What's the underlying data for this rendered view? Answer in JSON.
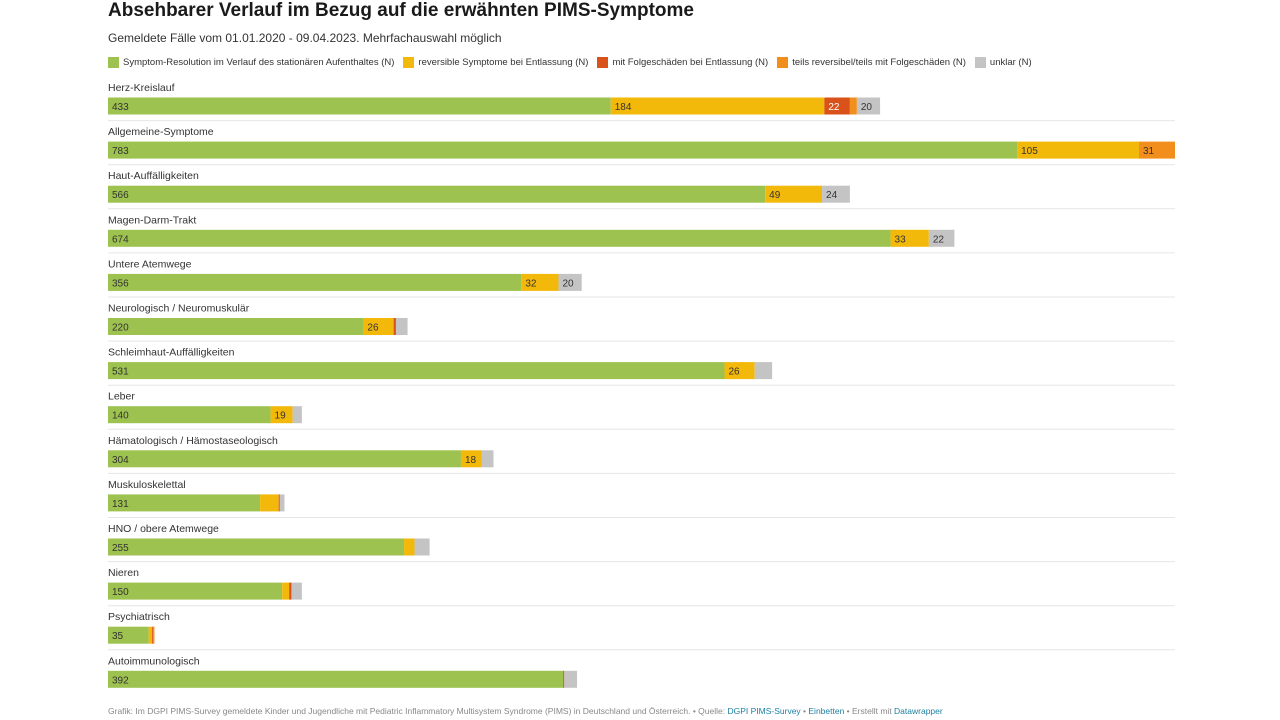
{
  "chart_data": {
    "type": "bar",
    "orientation": "horizontal",
    "stacked": true,
    "title": "Absehbarer Verlauf im Bezug auf die erwähnten PIMS-Symptome",
    "subtitle": "Gemeldete Fälle vom 01.01.2020 - 09.04.2023. Mehrfachauswahl möglich",
    "categories": [
      "Herz-Kreislauf",
      "Allgemeine-Symptome",
      "Haut-Auffälligkeiten",
      "Magen-Darm-Trakt",
      "Untere Atemwege",
      "Neurologisch / Neuromuskulär",
      "Schleimhaut-Auffälligkeiten",
      "Leber",
      "Hämatologisch / Hämostaseologisch",
      "Muskuloskelettal",
      "HNO / obere Atemwege",
      "Nieren",
      "Psychiatrisch",
      "Autoimmunologisch"
    ],
    "series": [
      {
        "name": "Symptom-Resolution im Verlauf des stationären Aufenthaltes (N)",
        "color": "#9dc24f",
        "values": [
          433,
          783,
          566,
          674,
          356,
          220,
          531,
          140,
          304,
          131,
          255,
          150,
          35,
          392
        ]
      },
      {
        "name": "reversible Symptome bei Entlassung (N)",
        "color": "#f2b80a",
        "values": [
          184,
          105,
          49,
          33,
          32,
          26,
          26,
          19,
          18,
          16,
          9,
          6,
          3,
          0
        ]
      },
      {
        "name": "mit Folgeschäden bei Entlassung (N)",
        "color": "#d9521a",
        "values": [
          22,
          0,
          0,
          0,
          0,
          2,
          0,
          0,
          0,
          1,
          0,
          2,
          1,
          1
        ]
      },
      {
        "name": "teils reversibel/teils mit Folgeschäden (N)",
        "color": "#f28f1c",
        "values": [
          6,
          31,
          0,
          0,
          0,
          0,
          0,
          0,
          0,
          0,
          0,
          0,
          1,
          0
        ]
      },
      {
        "name": "unklar (N)",
        "color": "#c4c4c4",
        "values": [
          20,
          0,
          24,
          22,
          20,
          10,
          15,
          8,
          10,
          4,
          13,
          9,
          0,
          11
        ]
      }
    ],
    "data_labels": [
      [
        "433",
        "184",
        "22",
        "",
        "20"
      ],
      [
        "783",
        "105",
        "",
        "31",
        ""
      ],
      [
        "566",
        "49",
        "",
        "",
        "24"
      ],
      [
        "674",
        "33",
        "",
        "",
        "22"
      ],
      [
        "356",
        "32",
        "",
        "",
        "20"
      ],
      [
        "220",
        "26",
        "",
        "",
        ""
      ],
      [
        "531",
        "26",
        "",
        "",
        ""
      ],
      [
        "140",
        "19",
        "",
        "",
        ""
      ],
      [
        "304",
        "18",
        "",
        "",
        ""
      ],
      [
        "131",
        "",
        "",
        "",
        ""
      ],
      [
        "255",
        "",
        "",
        "",
        ""
      ],
      [
        "150",
        "",
        "",
        "",
        ""
      ],
      [
        "35",
        "",
        "",
        "",
        ""
      ],
      [
        "392",
        "",
        "",
        "",
        ""
      ]
    ],
    "xlim": [
      0,
      919
    ],
    "grid": false,
    "legend_position": "top"
  },
  "footer": {
    "text": "Grafik: Im DGPI PIMS-Survey gemeldete Kinder und Jugendliche mit Pediatric Inflammatory Multisystem Syndrome (PIMS) in Deutschland und Österreich. • Quelle: ",
    "source_link": "DGPI PIMS-Survey",
    "sep1": " • ",
    "embed_link": "Einbetten",
    "sep2": " • Erstellt mit ",
    "datawrapper_link": "Datawrapper"
  }
}
